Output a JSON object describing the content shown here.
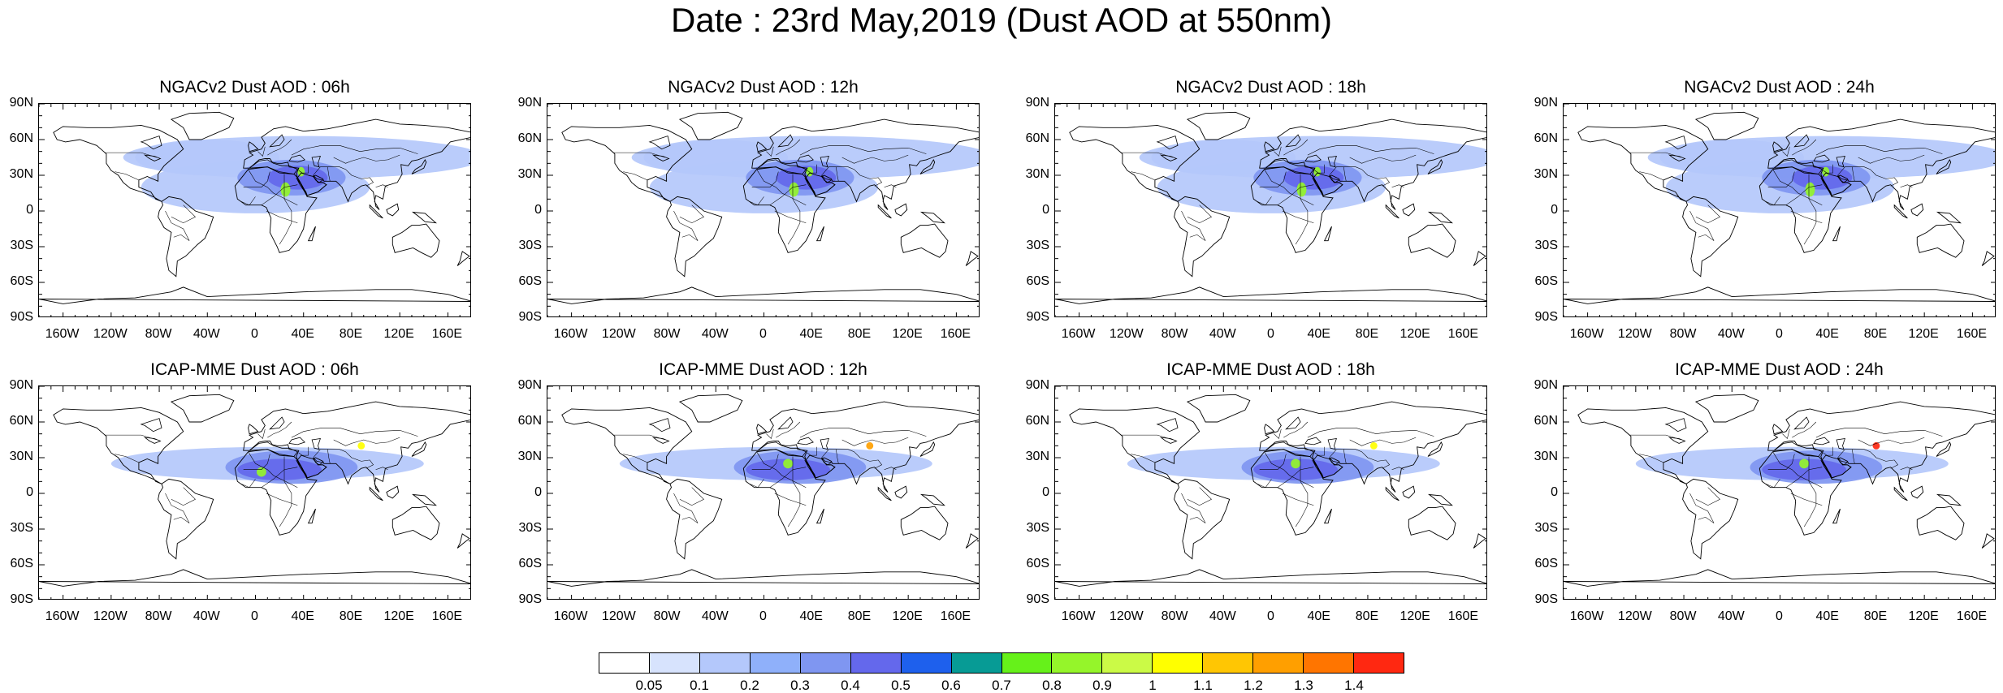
{
  "title": "Date : 23rd May,2019 (Dust AOD at 550nm)",
  "chart_data": {
    "type": "heatmap",
    "panels": [
      {
        "title": "NGACv2 Dust AOD : 06h",
        "model": "NGACv2",
        "lead": "06h",
        "plumes": [
          {
            "lon": 0,
            "lat": 20,
            "rlon": 95,
            "rlat": 22,
            "level": 0.1
          },
          {
            "lon": 40,
            "lat": 45,
            "rlon": 150,
            "rlat": 18,
            "level": 0.1
          },
          {
            "lon": -40,
            "lat": 45,
            "rlon": 60,
            "rlat": 15,
            "level": 0.1
          },
          {
            "lon": 30,
            "lat": 28,
            "rlon": 45,
            "rlat": 15,
            "level": 0.3
          },
          {
            "lon": 35,
            "lat": 28,
            "rlon": 25,
            "rlat": 10,
            "level": 0.4
          },
          {
            "lon": 25,
            "lat": 18,
            "rlon": 4,
            "rlat": 6,
            "level": 0.8
          },
          {
            "lon": 38,
            "lat": 33,
            "rlon": 3,
            "rlat": 4,
            "level": 0.8
          }
        ]
      },
      {
        "title": "NGACv2 Dust AOD : 12h",
        "model": "NGACv2",
        "lead": "12h",
        "plumes": [
          {
            "lon": 0,
            "lat": 20,
            "rlon": 95,
            "rlat": 22,
            "level": 0.1
          },
          {
            "lon": 40,
            "lat": 45,
            "rlon": 150,
            "rlat": 18,
            "level": 0.1
          },
          {
            "lon": -40,
            "lat": 45,
            "rlon": 60,
            "rlat": 15,
            "level": 0.1
          },
          {
            "lon": 30,
            "lat": 28,
            "rlon": 45,
            "rlat": 15,
            "level": 0.3
          },
          {
            "lon": 35,
            "lat": 28,
            "rlon": 25,
            "rlat": 10,
            "level": 0.4
          },
          {
            "lon": 25,
            "lat": 18,
            "rlon": 4,
            "rlat": 6,
            "level": 0.8
          },
          {
            "lon": 38,
            "lat": 33,
            "rlon": 3,
            "rlat": 4,
            "level": 0.8
          }
        ]
      },
      {
        "title": "NGACv2 Dust AOD : 18h",
        "model": "NGACv2",
        "lead": "18h",
        "plumes": [
          {
            "lon": 0,
            "lat": 20,
            "rlon": 95,
            "rlat": 22,
            "level": 0.1
          },
          {
            "lon": 40,
            "lat": 45,
            "rlon": 150,
            "rlat": 18,
            "level": 0.1
          },
          {
            "lon": -40,
            "lat": 45,
            "rlon": 60,
            "rlat": 15,
            "level": 0.1
          },
          {
            "lon": 30,
            "lat": 28,
            "rlon": 45,
            "rlat": 15,
            "level": 0.3
          },
          {
            "lon": 35,
            "lat": 28,
            "rlon": 25,
            "rlat": 10,
            "level": 0.4
          },
          {
            "lon": 25,
            "lat": 18,
            "rlon": 4,
            "rlat": 6,
            "level": 0.8
          },
          {
            "lon": 38,
            "lat": 33,
            "rlon": 3,
            "rlat": 4,
            "level": 0.8
          }
        ]
      },
      {
        "title": "NGACv2 Dust AOD : 24h",
        "model": "NGACv2",
        "lead": "24h",
        "plumes": [
          {
            "lon": 0,
            "lat": 20,
            "rlon": 95,
            "rlat": 22,
            "level": 0.1
          },
          {
            "lon": 40,
            "lat": 45,
            "rlon": 150,
            "rlat": 18,
            "level": 0.1
          },
          {
            "lon": -40,
            "lat": 45,
            "rlon": 60,
            "rlat": 15,
            "level": 0.1
          },
          {
            "lon": 30,
            "lat": 28,
            "rlon": 45,
            "rlat": 15,
            "level": 0.3
          },
          {
            "lon": 35,
            "lat": 28,
            "rlon": 25,
            "rlat": 10,
            "level": 0.4
          },
          {
            "lon": 25,
            "lat": 18,
            "rlon": 4,
            "rlat": 6,
            "level": 0.8
          },
          {
            "lon": 38,
            "lat": 33,
            "rlon": 3,
            "rlat": 4,
            "level": 0.8
          }
        ]
      },
      {
        "title": "ICAP-MME Dust AOD : 06h",
        "model": "ICAP-MME",
        "lead": "06h",
        "plumes": [
          {
            "lon": 10,
            "lat": 25,
            "rlon": 130,
            "rlat": 14,
            "level": 0.1
          },
          {
            "lon": 30,
            "lat": 22,
            "rlon": 55,
            "rlat": 14,
            "level": 0.3
          },
          {
            "lon": 20,
            "lat": 20,
            "rlon": 35,
            "rlat": 9,
            "level": 0.4
          },
          {
            "lon": 5,
            "lat": 18,
            "rlon": 4,
            "rlat": 4,
            "level": 0.8
          },
          {
            "lon": 88,
            "lat": 40,
            "rlon": 3,
            "rlat": 3,
            "level": 1.0
          }
        ]
      },
      {
        "title": "ICAP-MME Dust AOD : 12h",
        "model": "ICAP-MME",
        "lead": "12h",
        "plumes": [
          {
            "lon": 10,
            "lat": 25,
            "rlon": 130,
            "rlat": 14,
            "level": 0.1
          },
          {
            "lon": 30,
            "lat": 22,
            "rlon": 55,
            "rlat": 14,
            "level": 0.3
          },
          {
            "lon": 20,
            "lat": 20,
            "rlon": 35,
            "rlat": 9,
            "level": 0.4
          },
          {
            "lon": 20,
            "lat": 25,
            "rlon": 4,
            "rlat": 4,
            "level": 0.8
          },
          {
            "lon": 88,
            "lat": 40,
            "rlon": 3,
            "rlat": 3,
            "level": 1.2
          }
        ]
      },
      {
        "title": "ICAP-MME Dust AOD : 18h",
        "model": "ICAP-MME",
        "lead": "18h",
        "plumes": [
          {
            "lon": 10,
            "lat": 25,
            "rlon": 130,
            "rlat": 14,
            "level": 0.1
          },
          {
            "lon": 30,
            "lat": 22,
            "rlon": 55,
            "rlat": 14,
            "level": 0.3
          },
          {
            "lon": 20,
            "lat": 20,
            "rlon": 35,
            "rlat": 9,
            "level": 0.4
          },
          {
            "lon": 20,
            "lat": 25,
            "rlon": 4,
            "rlat": 4,
            "level": 0.8
          },
          {
            "lon": 85,
            "lat": 40,
            "rlon": 3,
            "rlat": 3,
            "level": 1.0
          }
        ]
      },
      {
        "title": "ICAP-MME Dust AOD : 24h",
        "model": "ICAP-MME",
        "lead": "24h",
        "plumes": [
          {
            "lon": 10,
            "lat": 25,
            "rlon": 130,
            "rlat": 14,
            "level": 0.1
          },
          {
            "lon": 30,
            "lat": 22,
            "rlon": 55,
            "rlat": 14,
            "level": 0.3
          },
          {
            "lon": 20,
            "lat": 20,
            "rlon": 35,
            "rlat": 9,
            "level": 0.4
          },
          {
            "lon": 20,
            "lat": 25,
            "rlon": 4,
            "rlat": 4,
            "level": 0.8
          },
          {
            "lon": 80,
            "lat": 40,
            "rlon": 3,
            "rlat": 3,
            "level": 1.4
          }
        ]
      }
    ],
    "xticks": [
      "160W",
      "120W",
      "80W",
      "40W",
      "0",
      "40E",
      "80E",
      "120E",
      "160E"
    ],
    "xtick_values": [
      -160,
      -120,
      -80,
      -40,
      0,
      40,
      80,
      120,
      160
    ],
    "yticks": [
      "90N",
      "60N",
      "30N",
      "0",
      "30S",
      "60S",
      "90S"
    ],
    "ytick_values": [
      90,
      60,
      30,
      0,
      -30,
      -60,
      -90
    ],
    "xlim": [
      -180,
      180
    ],
    "ylim": [
      -90,
      90
    ],
    "colorbar": {
      "labels": [
        "0.05",
        "0.1",
        "0.2",
        "0.3",
        "0.4",
        "0.5",
        "0.6",
        "0.7",
        "0.8",
        "0.9",
        "1",
        "1.1",
        "1.2",
        "1.3",
        "1.4"
      ],
      "levels": [
        0.05,
        0.1,
        0.2,
        0.3,
        0.4,
        0.5,
        0.6,
        0.7,
        0.8,
        0.9,
        1.0,
        1.1,
        1.2,
        1.3,
        1.4
      ],
      "colors": [
        "#ffffff",
        "#d7e3fd",
        "#b4c8fb",
        "#8fb0fa",
        "#7f96f1",
        "#6468ec",
        "#1e60ed",
        "#079b95",
        "#66f11a",
        "#95f52a",
        "#cbfa46",
        "#ffff00",
        "#ffc603",
        "#ff9f00",
        "#ff7500",
        "#ff2811"
      ]
    }
  }
}
